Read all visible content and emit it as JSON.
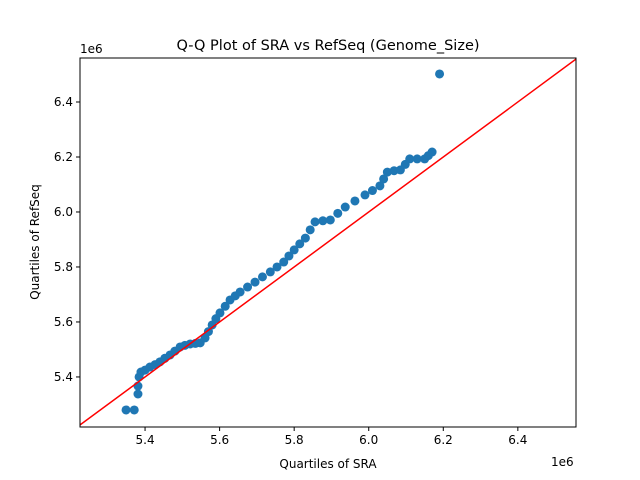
{
  "chart_data": {
    "type": "scatter",
    "title": "Q-Q Plot of SRA vs RefSeq (Genome_Size)",
    "xlabel": "Quartiles of SRA",
    "ylabel": "Quartiles of RefSeq",
    "x_offset_label": "1e6",
    "y_offset_label": "1e6",
    "xlim": [
      5.2255,
      6.556
    ],
    "ylim": [
      5.218,
      6.56
    ],
    "xticks": [
      "5.4",
      "5.6",
      "5.8",
      "6.0",
      "6.2",
      "6.4"
    ],
    "yticks": [
      "5.4",
      "5.6",
      "5.8",
      "6.0",
      "6.2",
      "6.4"
    ],
    "grid": false,
    "marker_color": "#1f77b4",
    "reference_line": {
      "type": "y=x",
      "color": "#ff0000"
    },
    "points": [
      [
        5.349,
        5.28
      ],
      [
        5.371,
        5.28
      ],
      [
        5.381,
        5.338
      ],
      [
        5.381,
        5.367
      ],
      [
        5.384,
        5.4
      ],
      [
        5.389,
        5.418
      ],
      [
        5.4,
        5.425
      ],
      [
        5.413,
        5.436
      ],
      [
        5.427,
        5.445
      ],
      [
        5.44,
        5.455
      ],
      [
        5.453,
        5.468
      ],
      [
        5.467,
        5.48
      ],
      [
        5.48,
        5.494
      ],
      [
        5.494,
        5.509
      ],
      [
        5.507,
        5.515
      ],
      [
        5.521,
        5.52
      ],
      [
        5.535,
        5.522
      ],
      [
        5.548,
        5.524
      ],
      [
        5.561,
        5.542
      ],
      [
        5.57,
        5.565
      ],
      [
        5.58,
        5.589
      ],
      [
        5.59,
        5.612
      ],
      [
        5.601,
        5.633
      ],
      [
        5.615,
        5.657
      ],
      [
        5.628,
        5.68
      ],
      [
        5.642,
        5.695
      ],
      [
        5.655,
        5.709
      ],
      [
        5.675,
        5.727
      ],
      [
        5.695,
        5.745
      ],
      [
        5.715,
        5.764
      ],
      [
        5.736,
        5.782
      ],
      [
        5.754,
        5.8
      ],
      [
        5.772,
        5.818
      ],
      [
        5.786,
        5.84
      ],
      [
        5.8,
        5.862
      ],
      [
        5.815,
        5.884
      ],
      [
        5.83,
        5.905
      ],
      [
        5.843,
        5.935
      ],
      [
        5.856,
        5.964
      ],
      [
        5.877,
        5.968
      ],
      [
        5.897,
        5.971
      ],
      [
        5.917,
        5.995
      ],
      [
        5.937,
        6.018
      ],
      [
        5.963,
        6.04
      ],
      [
        5.99,
        6.062
      ],
      [
        6.01,
        6.078
      ],
      [
        6.03,
        6.095
      ],
      [
        6.04,
        6.12
      ],
      [
        6.05,
        6.145
      ],
      [
        6.068,
        6.15
      ],
      [
        6.085,
        6.153
      ],
      [
        6.098,
        6.173
      ],
      [
        6.11,
        6.193
      ],
      [
        6.13,
        6.193
      ],
      [
        6.15,
        6.193
      ],
      [
        6.16,
        6.205
      ],
      [
        6.17,
        6.218
      ],
      [
        6.19,
        6.502
      ]
    ]
  }
}
